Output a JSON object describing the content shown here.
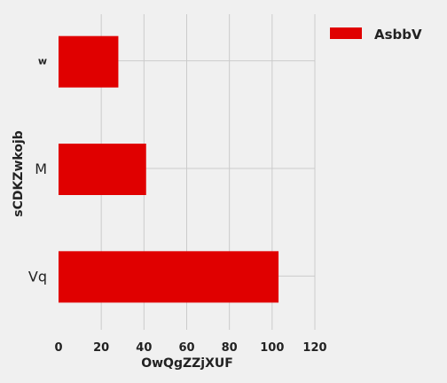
{
  "chart_data": {
    "type": "bar",
    "orientation": "horizontal",
    "categories": [
      "w",
      "M",
      "Vq"
    ],
    "series": [
      {
        "name": "AsbbV",
        "values": [
          28,
          41,
          103
        ],
        "color": "#e00000"
      }
    ],
    "xlabel": "OwQgZZjXUF",
    "ylabel": "sCDKZwkojb",
    "xlim": [
      0,
      120
    ],
    "xticks": [
      0,
      20,
      40,
      60,
      80,
      100,
      120
    ],
    "grid": true,
    "legend_position": "top-right"
  }
}
